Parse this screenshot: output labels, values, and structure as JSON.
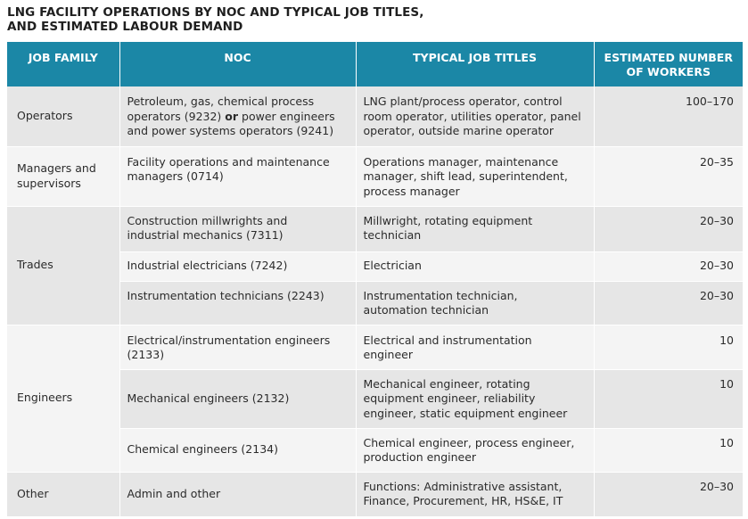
{
  "title": {
    "line1": "LNG FACILITY OPERATIONS BY NOC AND TYPICAL JOB TITLES,",
    "line2": "AND ESTIMATED LABOUR DEMAND"
  },
  "headers": {
    "family": "JOB FAMILY",
    "noc": "NOC",
    "titles": "TYPICAL JOB TITLES",
    "workers_line1": "ESTIMATED NUMBER",
    "workers_line2": "OF WORKERS"
  },
  "rows": {
    "operators": {
      "family": "Operators",
      "noc_l1": "Petroleum, gas, chemical process",
      "noc_l2a": "operators (9232) ",
      "noc_or": "or",
      "noc_l2b": " power engineers",
      "noc_l3": "and power systems operators (9241)",
      "titles_l1": "LNG plant/process operator, control",
      "titles_l2": "room operator, utilities operator, panel",
      "titles_l3": "operator, outside marine operator",
      "workers": "100–170"
    },
    "managers": {
      "family_l1": "Managers and",
      "family_l2": "supervisors",
      "noc_l1": "Facility operations and maintenance",
      "noc_l2": "managers (0714)",
      "titles_l1": "Operations manager, maintenance",
      "titles_l2": "manager, shift lead, superintendent,",
      "titles_l3": "process manager",
      "workers": "20–35"
    },
    "trades": {
      "family": "Trades",
      "r1": {
        "noc_l1": "Construction millwrights and",
        "noc_l2": "industrial mechanics (7311)",
        "titles_l1": "Millwright, rotating equipment",
        "titles_l2": "technician",
        "workers": "20–30"
      },
      "r2": {
        "noc_l1": "Industrial electricians (7242)",
        "titles_l1": "Electrician",
        "workers": "20–30"
      },
      "r3": {
        "noc_l1": "Instrumentation technicians (2243)",
        "titles_l1": "Instrumentation technician,",
        "titles_l2": "automation technician",
        "workers": "20–30"
      }
    },
    "engineers": {
      "family": "Engineers",
      "r1": {
        "noc_l1": "Electrical/instrumentation engineers",
        "noc_l2": "(2133)",
        "titles_l1": "Electrical and instrumentation",
        "titles_l2": "engineer",
        "workers": "10"
      },
      "r2": {
        "noc_l1": "Mechanical engineers (2132)",
        "titles_l1": "Mechanical engineer, rotating",
        "titles_l2": "equipment engineer, reliability",
        "titles_l3": "engineer, static equipment engineer",
        "workers": "10"
      },
      "r3": {
        "noc_l1": "Chemical engineers (2134)",
        "titles_l1": "Chemical engineer, process engineer,",
        "titles_l2": "production engineer",
        "workers": "10"
      }
    },
    "other": {
      "family": "Other",
      "noc_l1": "Admin and other",
      "titles_l1": "Functions: Administrative assistant,",
      "titles_l2": "Finance, Procurement, HR, HS&E, IT",
      "workers": "20–30"
    }
  },
  "colors": {
    "header_bg": "#1b87a6",
    "row_dark": "#e6e6e6",
    "row_light": "#f4f4f4"
  }
}
